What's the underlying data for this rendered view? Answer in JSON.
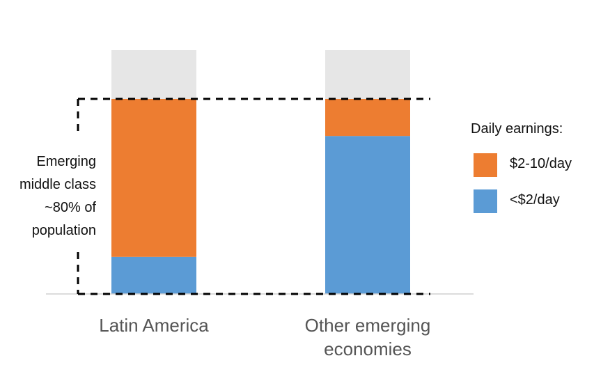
{
  "chart_data": {
    "type": "bar",
    "stacked": true,
    "categories": [
      "Latin America",
      "Other emerging economies"
    ],
    "category_lines": [
      [
        "Latin America"
      ],
      [
        "Other emerging",
        "economies"
      ]
    ],
    "series": [
      {
        "name": "<$2/day",
        "values": [
          19,
          81
        ],
        "color": "#5b9bd5"
      },
      {
        "name": "$2-10/day",
        "values": [
          81,
          19
        ],
        "color": "#ed7d31"
      },
      {
        "name": "",
        "values": [
          25,
          25
        ],
        "color": "#e6e6e6"
      }
    ],
    "legend": {
      "title": "Daily earnings:",
      "position": "right"
    },
    "annotation": {
      "lines": [
        "Emerging",
        "middle class",
        "~80% of",
        "population"
      ],
      "style": "dashed-box"
    },
    "ylim": [
      0,
      125
    ],
    "grid": false,
    "xlabel": "",
    "ylabel": ""
  }
}
